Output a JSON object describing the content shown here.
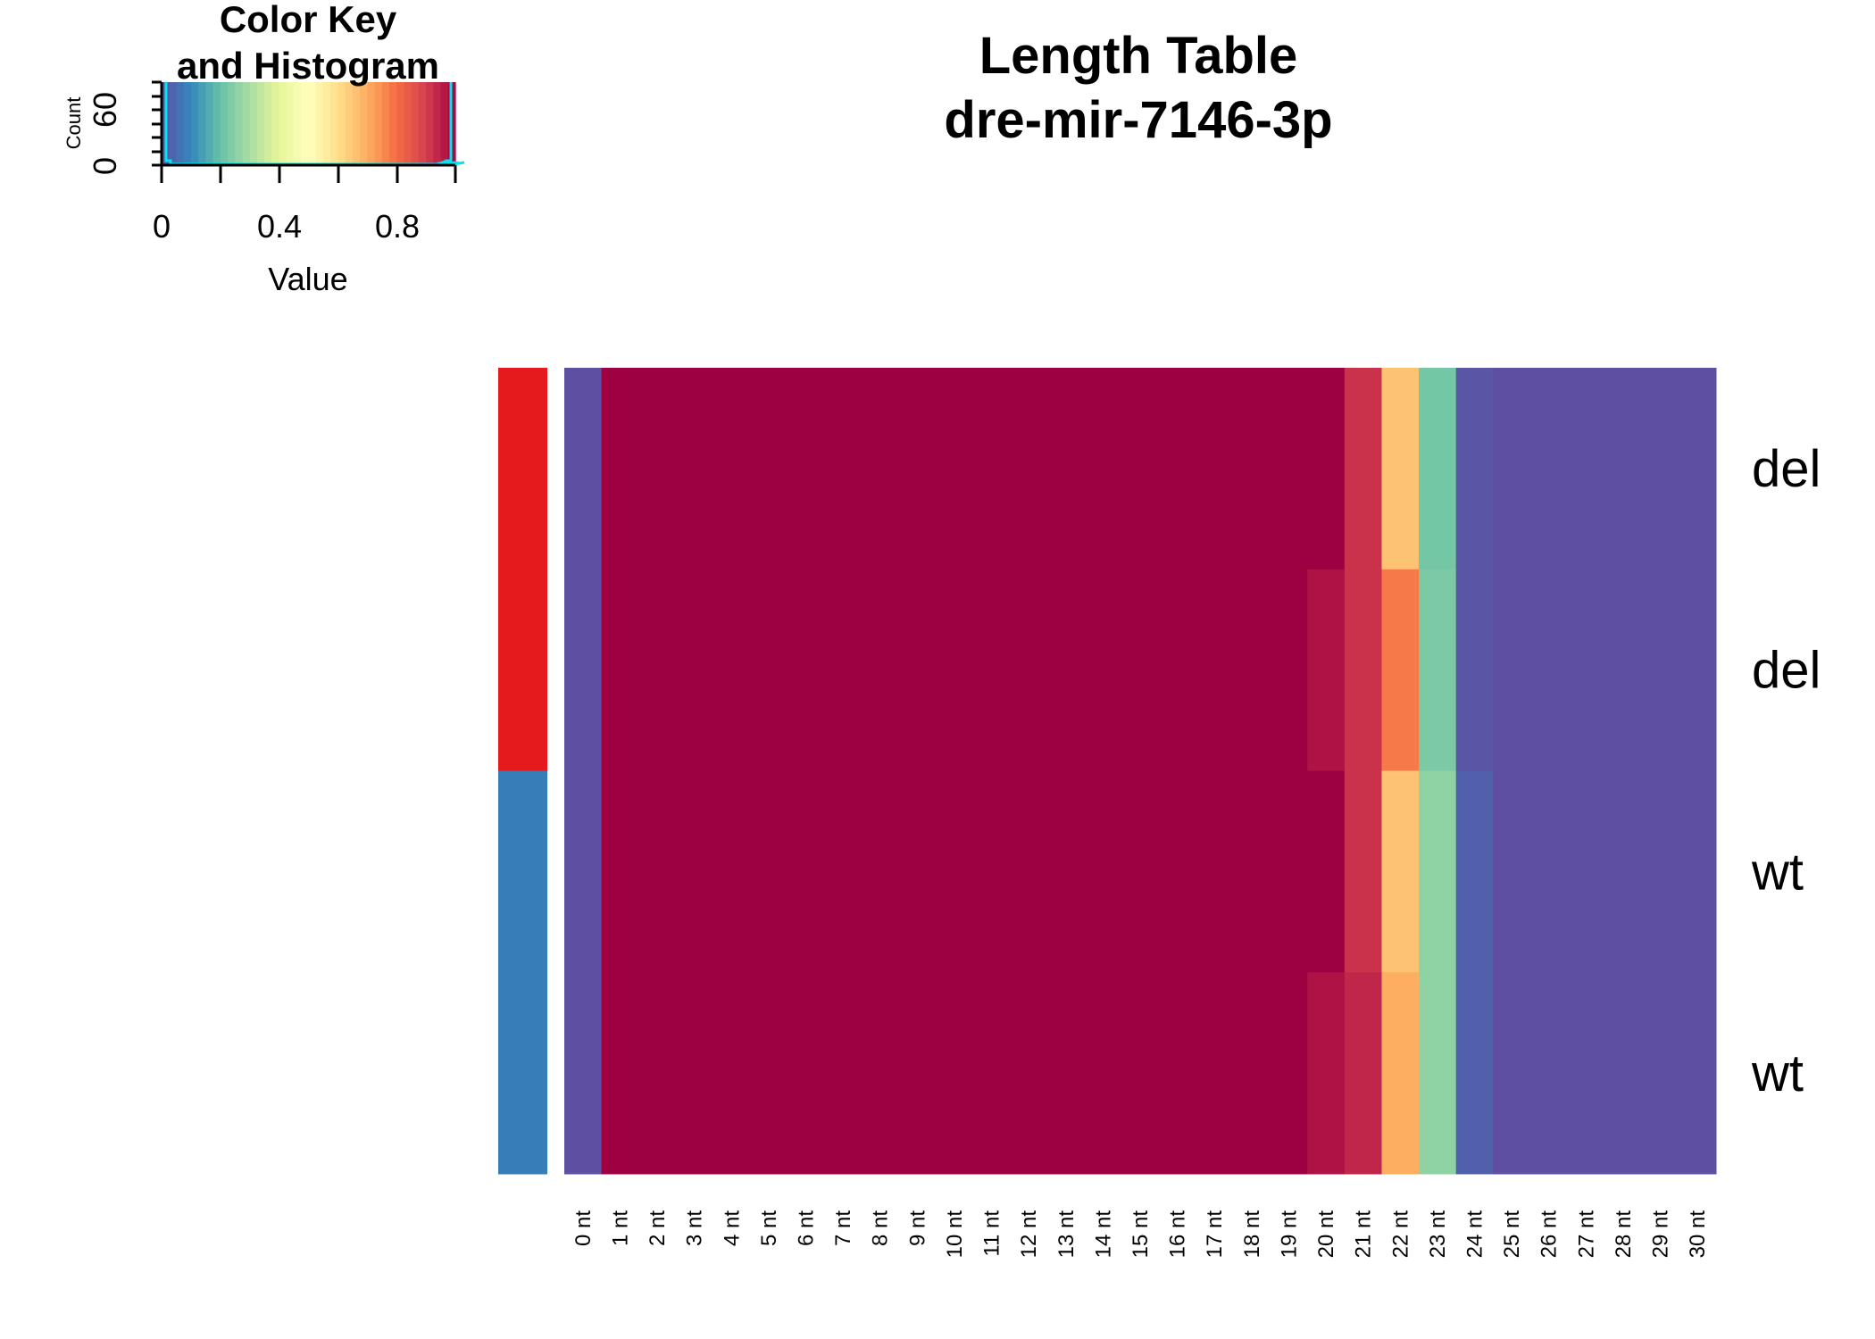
{
  "chart_data": {
    "type": "heatmap",
    "title": [
      "Length Table",
      "dre-mir-7146-3p"
    ],
    "columns": [
      "0 nt",
      "1 nt",
      "2 nt",
      "3 nt",
      "4 nt",
      "5 nt",
      "6 nt",
      "7 nt",
      "8 nt",
      "9 nt",
      "10 nt",
      "11 nt",
      "12 nt",
      "13 nt",
      "14 nt",
      "15 nt",
      "16 nt",
      "17 nt",
      "18 nt",
      "19 nt",
      "20 nt",
      "21 nt",
      "22 nt",
      "23 nt",
      "24 nt",
      "25 nt",
      "26 nt",
      "27 nt",
      "28 nt",
      "29 nt",
      "30 nt"
    ],
    "rows": [
      "del",
      "del",
      "wt",
      "wt"
    ],
    "row_groups": [
      {
        "name": "del",
        "color": "#e41a1c"
      },
      {
        "name": "del",
        "color": "#e41a1c"
      },
      {
        "name": "wt",
        "color": "#377eb8"
      },
      {
        "name": "wt",
        "color": "#377eb8"
      }
    ],
    "values": [
      [
        0.0,
        1,
        1,
        1,
        1,
        1,
        1,
        1,
        1,
        1,
        1,
        1,
        1,
        1,
        1,
        1,
        1,
        1,
        1,
        1,
        1.0,
        0.92,
        0.66,
        0.22,
        0.01,
        0,
        0,
        0,
        0,
        0,
        0
      ],
      [
        0.0,
        1,
        1,
        1,
        1,
        1,
        1,
        1,
        1,
        1,
        1,
        1,
        1,
        1,
        1,
        1,
        1,
        1,
        1,
        1,
        0.97,
        0.92,
        0.78,
        0.23,
        0.01,
        0,
        0,
        0,
        0,
        0,
        0
      ],
      [
        0.0,
        1,
        1,
        1,
        1,
        1,
        1,
        1,
        1,
        1,
        1,
        1,
        1,
        1,
        1,
        1,
        1,
        1,
        1,
        1,
        1.0,
        0.92,
        0.66,
        0.26,
        0.03,
        0,
        0,
        0,
        0,
        0,
        0
      ],
      [
        0.0,
        1,
        1,
        1,
        1,
        1,
        1,
        1,
        1,
        1,
        1,
        1,
        1,
        1,
        1,
        1,
        1,
        1,
        1,
        1,
        0.97,
        0.94,
        0.7,
        0.26,
        0.03,
        0,
        0,
        0,
        0,
        0,
        0
      ]
    ],
    "color_key": {
      "title": [
        "Color Key",
        "and Histogram"
      ],
      "xlabel": "Value",
      "ylabel": "Count",
      "x_ticks": [
        "0",
        "0.4",
        "0.8"
      ],
      "y_ticks": [
        "0",
        "60"
      ],
      "range": [
        0,
        1
      ],
      "palette": [
        "#5e4fa2",
        "#3288bd",
        "#66c2a5",
        "#abdda4",
        "#e6f598",
        "#ffffbf",
        "#fee08b",
        "#fdae61",
        "#f46d43",
        "#d53e4f",
        "#9e0142"
      ]
    }
  }
}
